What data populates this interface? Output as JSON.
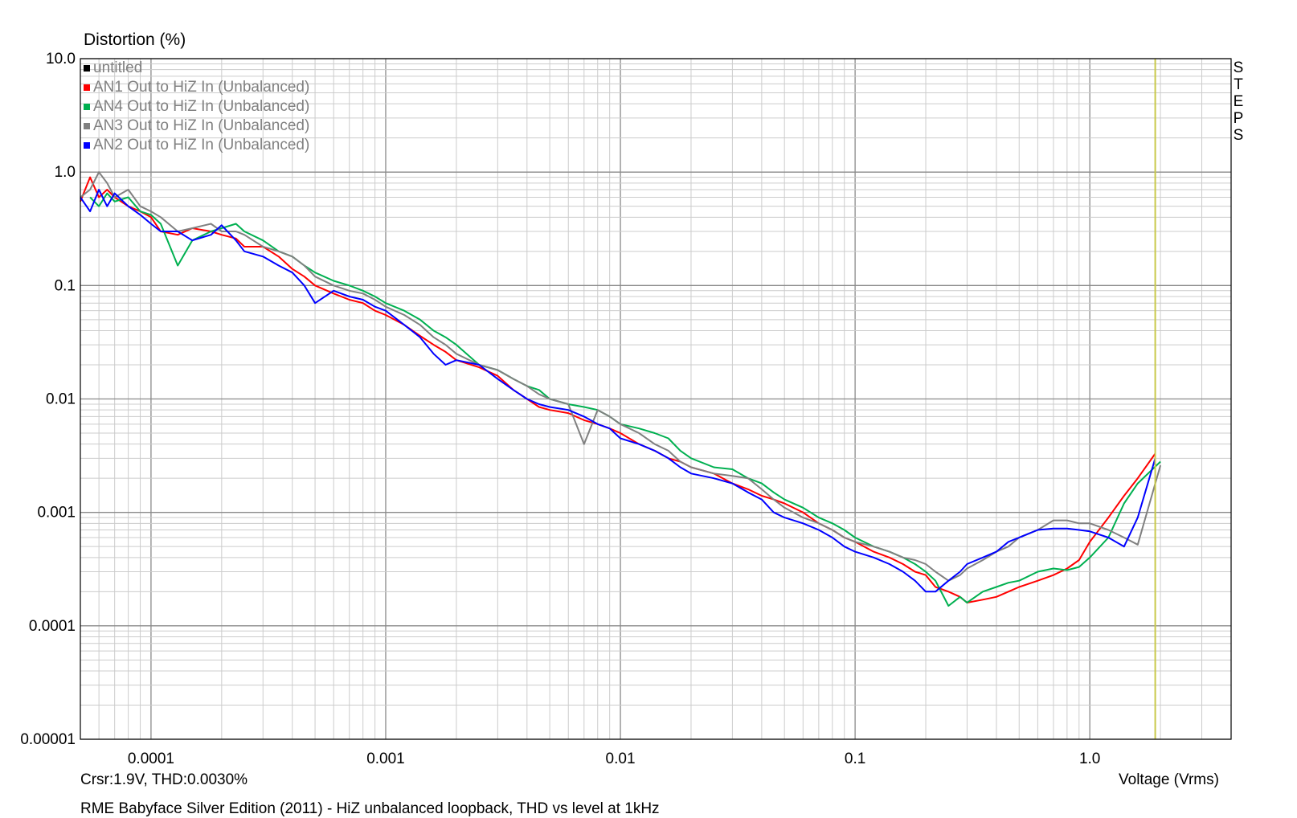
{
  "caption": "RME Babyface Silver Edition (2011) - HiZ unbalanced loopback, THD vs level at 1kHz",
  "cursor_readout": "Crsr:1.9V, THD:0.0030%",
  "side_label": "STEPS",
  "cursor_color": "#c8c84a",
  "chart_data": {
    "type": "line",
    "title": "",
    "ylabel": "Distortion (%)",
    "xlabel": "Voltage (Vrms)",
    "x_scale": "log",
    "y_scale": "log",
    "xlim": [
      5e-05,
      4.0
    ],
    "ylim": [
      1e-05,
      10.0
    ],
    "x_ticks": [
      {
        "value": 0.0001,
        "label": "0.0001"
      },
      {
        "value": 0.001,
        "label": "0.001"
      },
      {
        "value": 0.01,
        "label": "0.01"
      },
      {
        "value": 0.1,
        "label": "0.1"
      },
      {
        "value": 1.0,
        "label": "1.0"
      }
    ],
    "y_ticks": [
      {
        "value": 10.0,
        "label": "10.0"
      },
      {
        "value": 1.0,
        "label": "1.0"
      },
      {
        "value": 0.1,
        "label": "0.1"
      },
      {
        "value": 0.01,
        "label": "0.01"
      },
      {
        "value": 0.001,
        "label": "0.001"
      },
      {
        "value": 0.0001,
        "label": "0.0001"
      },
      {
        "value": 1e-05,
        "label": "0.00001"
      }
    ],
    "grid": true,
    "legend_position": "top-left",
    "cursor_x": 1.9,
    "series": [
      {
        "name": "untitled",
        "color": "#000000",
        "x": [],
        "y": []
      },
      {
        "name": "AN1 Out to HiZ In (Unbalanced)",
        "color": "#ff0000",
        "x": [
          5e-05,
          5.5e-05,
          6e-05,
          6.5e-05,
          7e-05,
          8e-05,
          9e-05,
          0.0001,
          0.00011,
          0.00013,
          0.00015,
          0.00018,
          0.0002,
          0.00023,
          0.00025,
          0.0003,
          0.00035,
          0.0004,
          0.00045,
          0.0005,
          0.0006,
          0.0007,
          0.0008,
          0.0009,
          0.001,
          0.0012,
          0.0014,
          0.0016,
          0.0018,
          0.002,
          0.0025,
          0.003,
          0.0035,
          0.004,
          0.0045,
          0.005,
          0.006,
          0.007,
          0.008,
          0.009,
          0.01,
          0.012,
          0.014,
          0.016,
          0.018,
          0.02,
          0.025,
          0.03,
          0.035,
          0.04,
          0.045,
          0.05,
          0.06,
          0.07,
          0.08,
          0.09,
          0.1,
          0.12,
          0.14,
          0.16,
          0.18,
          0.2,
          0.22,
          0.25,
          0.28,
          0.3,
          0.35,
          0.4,
          0.45,
          0.5,
          0.6,
          0.7,
          0.8,
          0.9,
          1.0,
          1.2,
          1.4,
          1.6,
          1.9
        ],
        "y": [
          0.55,
          0.9,
          0.6,
          0.7,
          0.6,
          0.5,
          0.45,
          0.4,
          0.3,
          0.28,
          0.32,
          0.3,
          0.28,
          0.26,
          0.22,
          0.22,
          0.18,
          0.14,
          0.12,
          0.1,
          0.085,
          0.075,
          0.07,
          0.06,
          0.055,
          0.045,
          0.036,
          0.03,
          0.026,
          0.022,
          0.019,
          0.016,
          0.012,
          0.01,
          0.0085,
          0.008,
          0.0075,
          0.0065,
          0.006,
          0.0055,
          0.005,
          0.004,
          0.0035,
          0.003,
          0.0028,
          0.0025,
          0.0022,
          0.0018,
          0.0016,
          0.0014,
          0.0013,
          0.0012,
          0.001,
          0.0008,
          0.0007,
          0.0006,
          0.00055,
          0.00045,
          0.0004,
          0.00035,
          0.0003,
          0.00028,
          0.00022,
          0.0002,
          0.00018,
          0.00016,
          0.00017,
          0.00018,
          0.0002,
          0.00022,
          0.00025,
          0.00028,
          0.00032,
          0.00038,
          0.00055,
          0.0009,
          0.0014,
          0.002,
          0.0033
        ]
      },
      {
        "name": "AN4 Out to HiZ In (Unbalanced)",
        "color": "#00b050",
        "x": [
          5.5e-05,
          6e-05,
          6.5e-05,
          7e-05,
          8e-05,
          9e-05,
          0.0001,
          0.00011,
          0.00013,
          0.00015,
          0.00018,
          0.0002,
          0.00023,
          0.00025,
          0.0003,
          0.00035,
          0.0004,
          0.00045,
          0.0005,
          0.0006,
          0.0007,
          0.0008,
          0.0009,
          0.001,
          0.0012,
          0.0014,
          0.0016,
          0.0018,
          0.002,
          0.0025,
          0.003,
          0.0035,
          0.004,
          0.0045,
          0.005,
          0.006,
          0.007,
          0.008,
          0.009,
          0.01,
          0.012,
          0.014,
          0.016,
          0.018,
          0.02,
          0.025,
          0.03,
          0.035,
          0.04,
          0.045,
          0.05,
          0.06,
          0.07,
          0.08,
          0.09,
          0.1,
          0.12,
          0.14,
          0.16,
          0.18,
          0.2,
          0.22,
          0.25,
          0.28,
          0.3,
          0.35,
          0.4,
          0.45,
          0.5,
          0.6,
          0.7,
          0.8,
          0.9,
          1.0,
          1.2,
          1.4,
          1.6,
          2.0
        ],
        "y": [
          0.6,
          0.5,
          0.65,
          0.55,
          0.6,
          0.45,
          0.42,
          0.35,
          0.15,
          0.25,
          0.3,
          0.32,
          0.35,
          0.3,
          0.25,
          0.2,
          0.18,
          0.15,
          0.13,
          0.11,
          0.1,
          0.09,
          0.08,
          0.07,
          0.06,
          0.05,
          0.04,
          0.035,
          0.03,
          0.02,
          0.018,
          0.015,
          0.013,
          0.012,
          0.01,
          0.009,
          0.0085,
          0.008,
          0.007,
          0.006,
          0.0055,
          0.005,
          0.0045,
          0.0035,
          0.003,
          0.0025,
          0.0024,
          0.002,
          0.0018,
          0.0015,
          0.0013,
          0.0011,
          0.0009,
          0.0008,
          0.0007,
          0.0006,
          0.0005,
          0.00045,
          0.0004,
          0.00035,
          0.0003,
          0.00025,
          0.00015,
          0.00018,
          0.00016,
          0.0002,
          0.00022,
          0.00024,
          0.00025,
          0.0003,
          0.00032,
          0.00031,
          0.00033,
          0.0004,
          0.0006,
          0.0012,
          0.0018,
          0.0028
        ]
      },
      {
        "name": "AN3 Out to HiZ In (Unbalanced)",
        "color": "#808080",
        "x": [
          5e-05,
          5.5e-05,
          6e-05,
          6.5e-05,
          7e-05,
          8e-05,
          9e-05,
          0.0001,
          0.00011,
          0.00013,
          0.00015,
          0.00018,
          0.0002,
          0.00023,
          0.00025,
          0.0003,
          0.00035,
          0.0004,
          0.00045,
          0.0005,
          0.0006,
          0.0007,
          0.0008,
          0.0009,
          0.001,
          0.0012,
          0.0014,
          0.0016,
          0.0018,
          0.002,
          0.0025,
          0.003,
          0.0035,
          0.004,
          0.0045,
          0.005,
          0.006,
          0.007,
          0.008,
          0.009,
          0.01,
          0.012,
          0.014,
          0.016,
          0.018,
          0.02,
          0.025,
          0.03,
          0.035,
          0.04,
          0.045,
          0.05,
          0.06,
          0.07,
          0.08,
          0.09,
          0.1,
          0.12,
          0.14,
          0.16,
          0.18,
          0.2,
          0.22,
          0.25,
          0.28,
          0.3,
          0.35,
          0.4,
          0.45,
          0.5,
          0.6,
          0.7,
          0.8,
          0.9,
          1.0,
          1.2,
          1.4,
          1.6,
          2.0
        ],
        "y": [
          0.6,
          0.7,
          1.0,
          0.8,
          0.6,
          0.7,
          0.5,
          0.45,
          0.4,
          0.3,
          0.32,
          0.35,
          0.3,
          0.3,
          0.28,
          0.22,
          0.2,
          0.18,
          0.15,
          0.12,
          0.1,
          0.09,
          0.085,
          0.075,
          0.065,
          0.055,
          0.045,
          0.035,
          0.03,
          0.025,
          0.02,
          0.018,
          0.015,
          0.013,
          0.011,
          0.01,
          0.009,
          0.004,
          0.008,
          0.007,
          0.006,
          0.005,
          0.004,
          0.0035,
          0.0028,
          0.0025,
          0.0022,
          0.0021,
          0.002,
          0.0016,
          0.0013,
          0.0011,
          0.0009,
          0.0008,
          0.0007,
          0.0006,
          0.00055,
          0.0005,
          0.00045,
          0.0004,
          0.00038,
          0.00035,
          0.0003,
          0.00025,
          0.00028,
          0.00032,
          0.00038,
          0.00045,
          0.0005,
          0.0006,
          0.0007,
          0.00085,
          0.00085,
          0.0008,
          0.0008,
          0.0007,
          0.0006,
          0.00052,
          0.0026
        ]
      },
      {
        "name": "AN2 Out to HiZ In (Unbalanced)",
        "color": "#0000ff",
        "x": [
          5e-05,
          5.5e-05,
          6e-05,
          6.5e-05,
          7e-05,
          8e-05,
          9e-05,
          0.0001,
          0.00011,
          0.00013,
          0.00015,
          0.00018,
          0.0002,
          0.00023,
          0.00025,
          0.0003,
          0.00035,
          0.0004,
          0.00045,
          0.0005,
          0.0006,
          0.0007,
          0.0008,
          0.0009,
          0.001,
          0.0012,
          0.0014,
          0.0016,
          0.0018,
          0.002,
          0.0025,
          0.003,
          0.0035,
          0.004,
          0.0045,
          0.005,
          0.006,
          0.007,
          0.008,
          0.009,
          0.01,
          0.012,
          0.014,
          0.016,
          0.018,
          0.02,
          0.025,
          0.03,
          0.035,
          0.04,
          0.045,
          0.05,
          0.06,
          0.07,
          0.08,
          0.09,
          0.1,
          0.12,
          0.14,
          0.16,
          0.18,
          0.2,
          0.22,
          0.25,
          0.28,
          0.3,
          0.35,
          0.4,
          0.45,
          0.5,
          0.6,
          0.7,
          0.8,
          0.9,
          1.0,
          1.2,
          1.4,
          1.6,
          1.9
        ],
        "y": [
          0.6,
          0.45,
          0.7,
          0.5,
          0.65,
          0.5,
          0.42,
          0.35,
          0.3,
          0.3,
          0.25,
          0.28,
          0.34,
          0.25,
          0.2,
          0.18,
          0.15,
          0.13,
          0.1,
          0.07,
          0.09,
          0.08,
          0.075,
          0.065,
          0.06,
          0.045,
          0.035,
          0.025,
          0.02,
          0.022,
          0.02,
          0.015,
          0.012,
          0.01,
          0.009,
          0.0085,
          0.008,
          0.007,
          0.006,
          0.0055,
          0.0045,
          0.004,
          0.0035,
          0.003,
          0.0025,
          0.0022,
          0.002,
          0.0018,
          0.0015,
          0.0013,
          0.001,
          0.0009,
          0.0008,
          0.0007,
          0.0006,
          0.0005,
          0.00045,
          0.0004,
          0.00035,
          0.0003,
          0.00025,
          0.0002,
          0.0002,
          0.00025,
          0.0003,
          0.00035,
          0.0004,
          0.00045,
          0.00055,
          0.0006,
          0.0007,
          0.00072,
          0.00072,
          0.0007,
          0.00068,
          0.0006,
          0.0005,
          0.0009,
          0.003
        ]
      }
    ]
  }
}
